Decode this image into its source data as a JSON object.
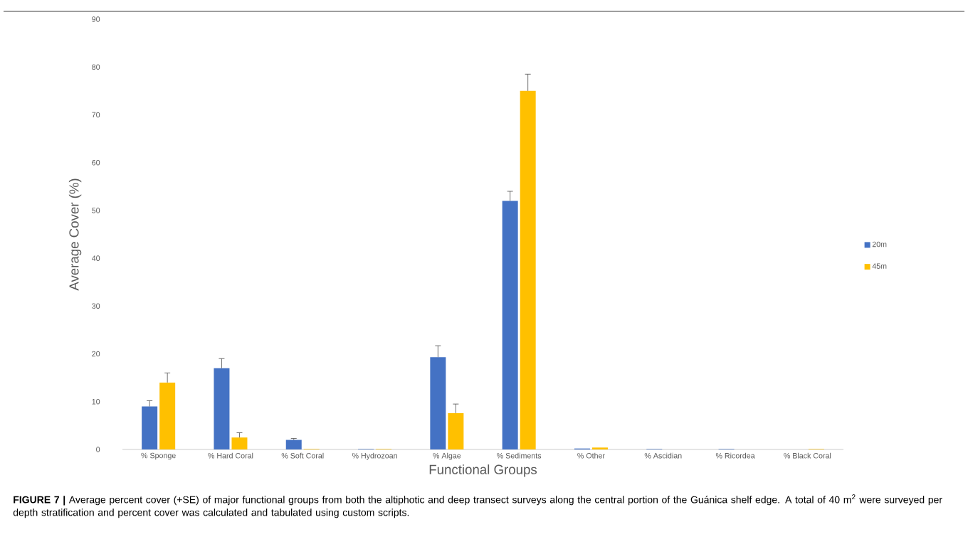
{
  "chart_data": {
    "type": "bar",
    "categories": [
      "% Sponge",
      "% Hard Coral",
      "% Soft Coral",
      "% Hydrozoan",
      "% Algae",
      "% Sediments",
      "% Other",
      "% Ascidian",
      "% Ricordea",
      "% Black Coral"
    ],
    "series": [
      {
        "name": "20m",
        "color": "#4472c4",
        "values": [
          9,
          17,
          2,
          0.1,
          19.3,
          52,
          0.2,
          0.1,
          0.1,
          0
        ],
        "errors": [
          1.2,
          2,
          0.3,
          null,
          2.4,
          2,
          null,
          null,
          null,
          null
        ]
      },
      {
        "name": "45m",
        "color": "#ffc000",
        "values": [
          14,
          2.5,
          0.1,
          0.1,
          7.6,
          75,
          0.4,
          0,
          0,
          0.1
        ],
        "errors": [
          2,
          1,
          null,
          null,
          1.9,
          3.5,
          null,
          null,
          null,
          null
        ]
      }
    ],
    "xlabel": "Functional Groups",
    "ylabel": "Average Cover (%)",
    "ylim": [
      0,
      90
    ],
    "yticks": [
      0,
      10,
      20,
      30,
      40,
      50,
      60,
      70,
      80,
      90
    ],
    "grid": false,
    "legend": "right",
    "annotations": [
      "**FIGURE 7 |** Average percent cover (+SE) of major functional groups from both the altiphotic and deep transect surveys along the central portion of the Guánica shelf edge. A total of 40 m$^{2}$ were surveyed per depth stratification and percent cover was calculated and tabulated using custom scripts."
    ]
  }
}
